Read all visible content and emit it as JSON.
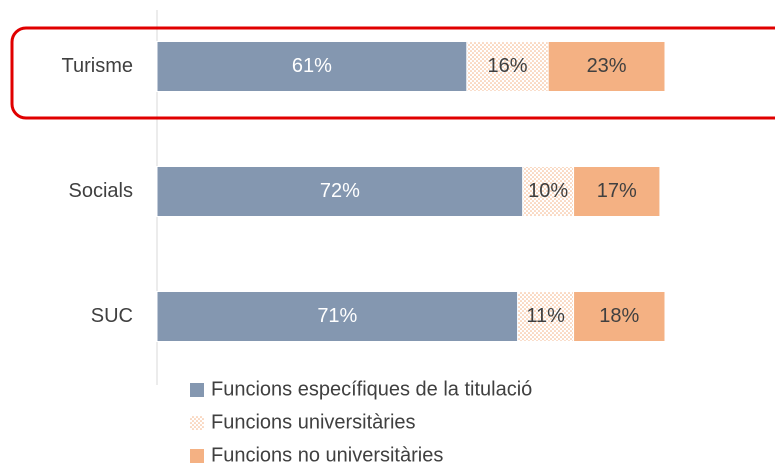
{
  "chart_data": {
    "type": "stacked-bar-horizontal",
    "categories": [
      "Turisme",
      "Socials",
      "SUC"
    ],
    "series": [
      {
        "name": "Funcions específiques de la titulació",
        "color": "#8497b0",
        "values": [
          61,
          72,
          71
        ],
        "value_labels": [
          "61%",
          "72%",
          "71%"
        ]
      },
      {
        "name": "Funcions universitàries",
        "color": "#f4b183",
        "pattern": "dots",
        "values": [
          16,
          10,
          11
        ],
        "value_labels": [
          "16%",
          "10%",
          "11%"
        ]
      },
      {
        "name": "Funcions no universitàries",
        "color": "#f4b183",
        "values": [
          23,
          17,
          18
        ],
        "value_labels": [
          "23%",
          "17%",
          "18%"
        ]
      }
    ],
    "xlim": [
      0,
      100
    ]
  }
}
